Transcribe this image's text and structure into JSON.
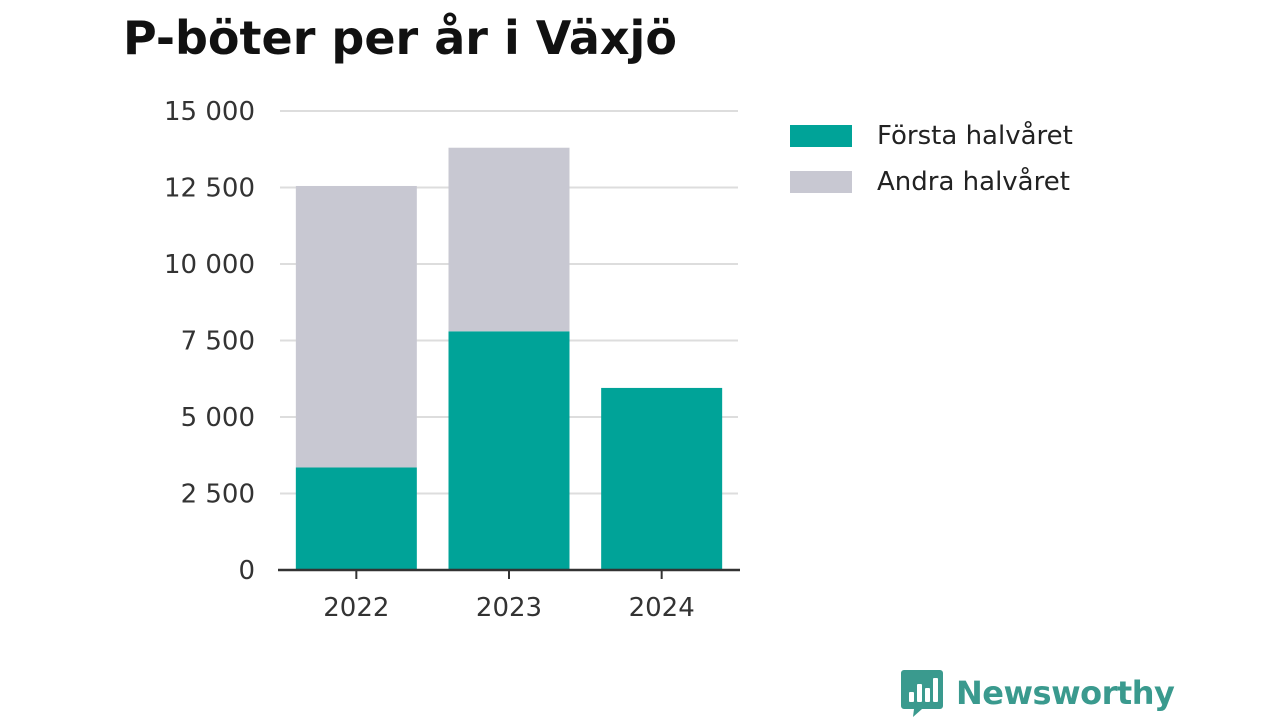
{
  "chart_data": {
    "type": "bar",
    "stacked": true,
    "title": "P-böter per år i Växjö",
    "xlabel": "",
    "ylabel": "",
    "categories": [
      "2022",
      "2023",
      "2024"
    ],
    "series": [
      {
        "name": "Första halvåret",
        "color": "#00a398",
        "values": [
          3350,
          7800,
          5950
        ]
      },
      {
        "name": "Andra halvåret",
        "color": "#c8c8d2",
        "values": [
          9200,
          6000,
          0
        ]
      }
    ],
    "ylim": [
      0,
      15000
    ],
    "yticks": [
      0,
      2500,
      5000,
      7500,
      10000,
      12500,
      15000
    ],
    "ytick_labels": [
      "0",
      "2 500",
      "5 000",
      "7 500",
      "10 000",
      "12 500",
      "15 000"
    ],
    "grid": true,
    "legend": "right"
  },
  "legend": {
    "items": [
      {
        "label": "Första halvåret",
        "color": "#00a398"
      },
      {
        "label": "Andra halvåret",
        "color": "#c8c8d2"
      }
    ]
  },
  "logo": {
    "text": "Newsworthy",
    "icon": "bar-chart-speech-bubble-icon",
    "color": "#3a9a8e"
  }
}
